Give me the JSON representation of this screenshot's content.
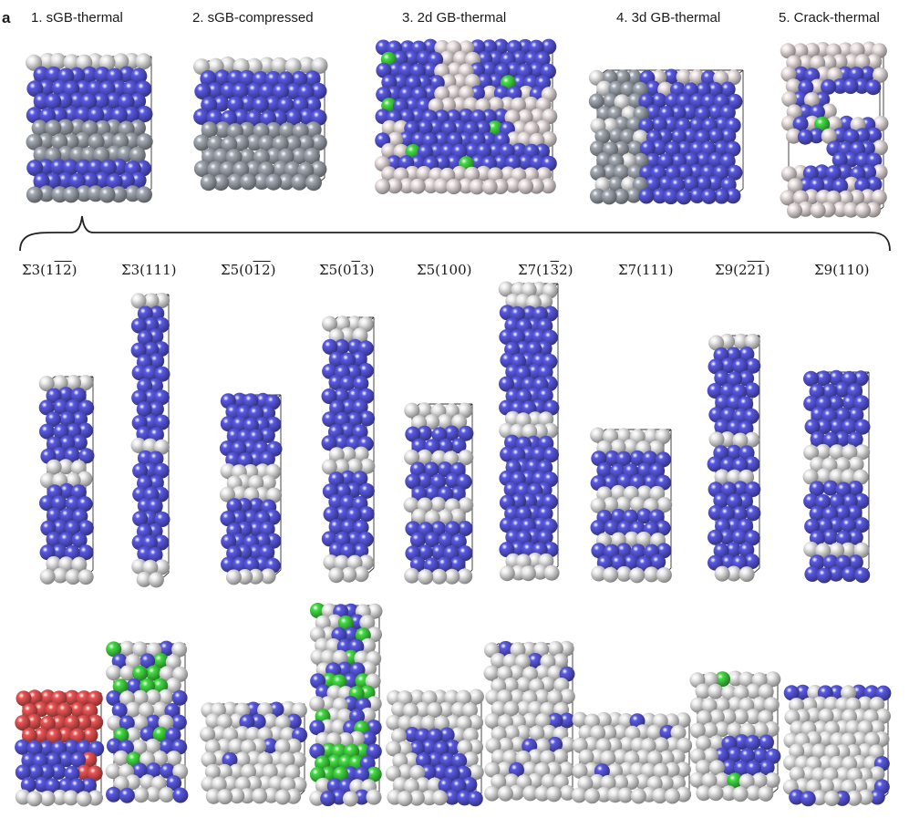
{
  "panel_label": "a",
  "top_row": [
    {
      "index": 1,
      "label": "1. sGB-thermal"
    },
    {
      "index": 2,
      "label": "2. sGB-compressed"
    },
    {
      "index": 3,
      "label": "3. 2d GB-thermal"
    },
    {
      "index": 4,
      "label": "4. 3d GB-thermal"
    },
    {
      "index": 5,
      "label": "5. Crack-thermal"
    }
  ],
  "sigma_labels": [
    {
      "prefix": "Σ3(1",
      "bar1": "1",
      "mid": "",
      "bar2": "2",
      "suffix": ")"
    },
    {
      "prefix": "Σ3(111)",
      "bar1": "",
      "mid": "",
      "bar2": "",
      "suffix": ""
    },
    {
      "prefix": "Σ5(0",
      "bar1": "1",
      "mid": "",
      "bar2": "2",
      "suffix": ")"
    },
    {
      "prefix": "Σ5(0",
      "bar1": "1",
      "mid": "3)",
      "bar2": "",
      "suffix": ""
    },
    {
      "prefix": "Σ5(100)",
      "bar1": "",
      "mid": "",
      "bar2": "",
      "suffix": ""
    },
    {
      "prefix": "Σ7(1",
      "bar1": "3",
      "mid": "2)",
      "bar2": "",
      "suffix": ""
    },
    {
      "prefix": "Σ7(111)",
      "bar1": "",
      "mid": "",
      "bar2": "",
      "suffix": ""
    },
    {
      "prefix": "Σ9(2",
      "bar1": "2",
      "mid": "",
      "bar2": "1",
      "suffix": ")"
    },
    {
      "prefix": "Σ9(110)",
      "bar1": "",
      "mid": "",
      "bar2": "",
      "suffix": ""
    }
  ],
  "colors": {
    "blue_atom": "#5a5ae6",
    "white_atom": "#eeeeee",
    "grey_atom": "#a4aab4",
    "pink_atom": "#f0e6e6",
    "green_atom": "#44dd44",
    "red_atom": "#ee5555",
    "box_line": "#333333"
  }
}
